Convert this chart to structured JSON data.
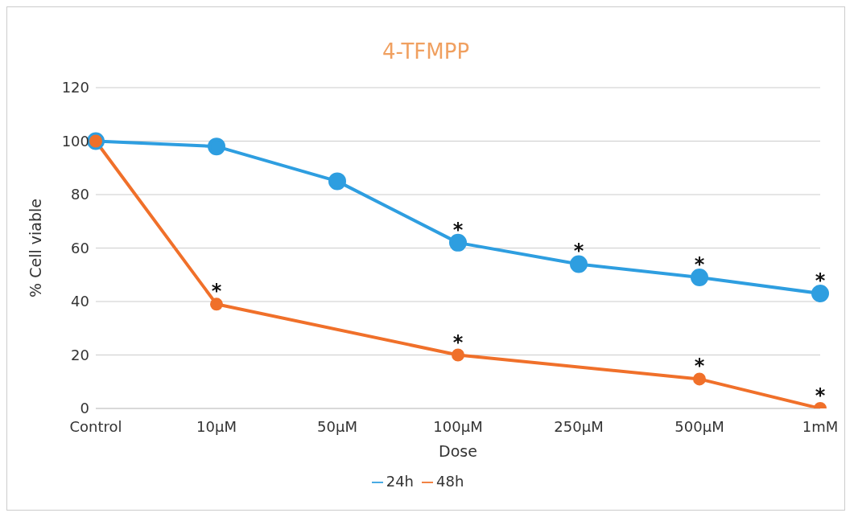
{
  "chart_data": {
    "type": "line",
    "title": "4-TFMPP",
    "xlabel": "Dose",
    "ylabel": "% Cell viable",
    "categories": [
      "Control",
      "10µM",
      "50µM",
      "100µM",
      "250µM",
      "500µM",
      "1mM"
    ],
    "series": [
      {
        "name": "24h",
        "color": "#2e9ee0",
        "values": [
          100,
          98,
          85,
          62,
          54,
          49,
          43
        ]
      },
      {
        "name": "48h",
        "color": "#f0702a",
        "values": [
          100,
          39,
          null,
          20,
          null,
          11,
          0
        ]
      }
    ],
    "ylim": [
      0,
      120
    ],
    "yticks": [
      0,
      20,
      40,
      60,
      80,
      100,
      120
    ],
    "grid": "y",
    "legend": "bottom",
    "marker": "circle",
    "line_style": "solid",
    "annotations": [
      {
        "text": "*",
        "x": "100µM",
        "y": 62
      },
      {
        "text": "*",
        "x": "250µM",
        "y": 54
      },
      {
        "text": "*",
        "x": "500µM",
        "y": 49
      },
      {
        "text": "*",
        "x": "1mM",
        "y": 43
      },
      {
        "text": "*",
        "x": "10µM",
        "y": 39
      },
      {
        "text": "*",
        "x": "100µM",
        "y": 20
      },
      {
        "text": "*",
        "x": "500µM",
        "y": 11
      },
      {
        "text": "*",
        "x": "1mM",
        "y": 0
      }
    ]
  }
}
